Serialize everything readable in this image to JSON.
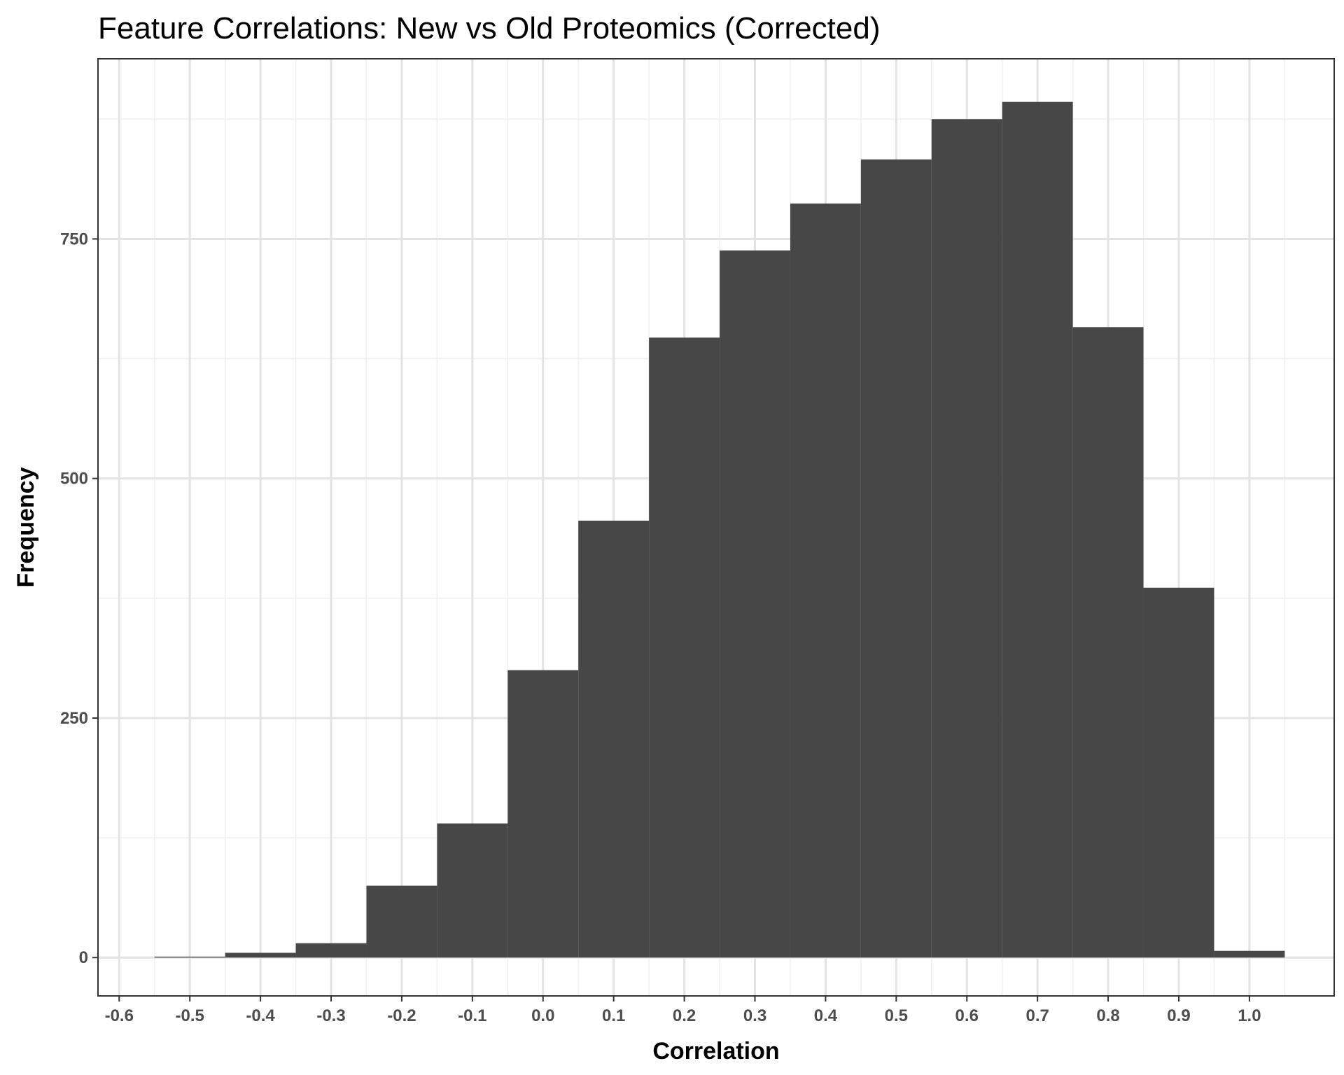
{
  "chart_data": {
    "type": "bar",
    "title": "Feature Correlations: New vs Old Proteomics (Corrected)",
    "xlabel": "Correlation",
    "ylabel": "Frequency",
    "bin_width": 0.1,
    "bins": [
      {
        "center": -0.5,
        "count": 1
      },
      {
        "center": -0.4,
        "count": 5
      },
      {
        "center": -0.3,
        "count": 15
      },
      {
        "center": -0.2,
        "count": 75
      },
      {
        "center": -0.1,
        "count": 140
      },
      {
        "center": 0.0,
        "count": 300
      },
      {
        "center": 0.1,
        "count": 456
      },
      {
        "center": 0.2,
        "count": 647
      },
      {
        "center": 0.3,
        "count": 738
      },
      {
        "center": 0.4,
        "count": 787
      },
      {
        "center": 0.5,
        "count": 833
      },
      {
        "center": 0.6,
        "count": 875
      },
      {
        "center": 0.7,
        "count": 893
      },
      {
        "center": 0.8,
        "count": 658
      },
      {
        "center": 0.9,
        "count": 386
      },
      {
        "center": 1.0,
        "count": 7
      }
    ],
    "x_ticks": [
      "-0.6",
      "-0.5",
      "-0.4",
      "-0.3",
      "-0.2",
      "-0.1",
      "0.0",
      "0.1",
      "0.2",
      "0.3",
      "0.4",
      "0.5",
      "0.6",
      "0.7",
      "0.8",
      "0.9",
      "1.0"
    ],
    "y_ticks": [
      "0",
      "250",
      "500",
      "750"
    ],
    "xlim": [
      -0.63,
      1.12
    ],
    "ylim": [
      -40,
      938
    ],
    "bar_color": "#474747",
    "grid": true,
    "legend": "none"
  }
}
